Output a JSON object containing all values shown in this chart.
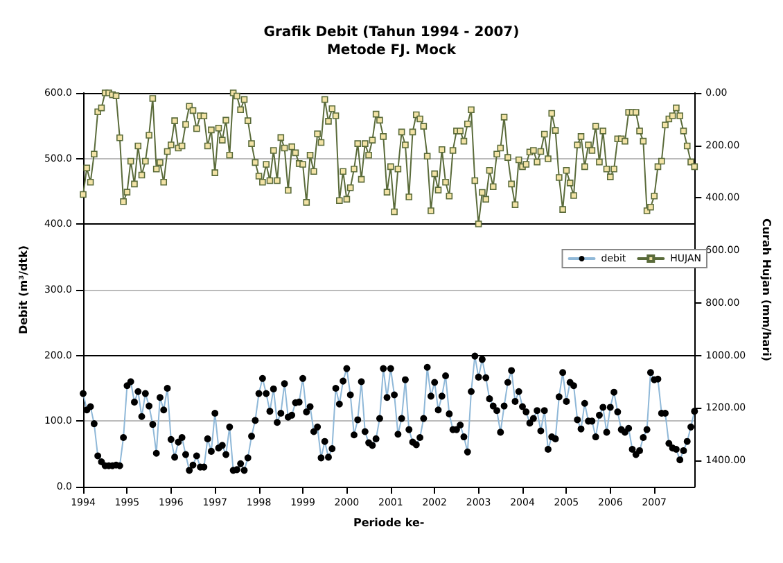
{
  "chart_data": {
    "type": "line",
    "title": "Grafik Debit (Tahun 1994 - 2007)\nMetode FJ. Mock",
    "xlabel": "Periode ke-",
    "ylabel": "Debit (m³/dtk)",
    "y2label": "Curah Hujan (mm/hari)",
    "categories": [
      "1994",
      null,
      null,
      null,
      null,
      null,
      null,
      null,
      null,
      null,
      null,
      null,
      "1995",
      null,
      null,
      null,
      null,
      null,
      null,
      null,
      null,
      null,
      null,
      null,
      "1996",
      null,
      null,
      null,
      null,
      null,
      null,
      null,
      null,
      null,
      null,
      null,
      "1997",
      null,
      null,
      null,
      null,
      null,
      null,
      null,
      null,
      null,
      null,
      null,
      "1998",
      null,
      null,
      null,
      null,
      null,
      null,
      null,
      null,
      null,
      null,
      null,
      "1999",
      null,
      null,
      null,
      null,
      null,
      null,
      null,
      null,
      null,
      null,
      null,
      "2000",
      null,
      null,
      null,
      null,
      null,
      null,
      null,
      null,
      null,
      null,
      null,
      "2001",
      null,
      null,
      null,
      null,
      null,
      null,
      null,
      null,
      null,
      null,
      null,
      "2002",
      null,
      null,
      null,
      null,
      null,
      null,
      null,
      null,
      null,
      null,
      null,
      "2003",
      null,
      null,
      null,
      null,
      null,
      null,
      null,
      null,
      null,
      null,
      null,
      "2004",
      null,
      null,
      null,
      null,
      null,
      null,
      null,
      null,
      null,
      null,
      null,
      "2005",
      null,
      null,
      null,
      null,
      null,
      null,
      null,
      null,
      null,
      null,
      null,
      "2006",
      null,
      null,
      null,
      null,
      null,
      null,
      null,
      null,
      null,
      null,
      null,
      "2007",
      null,
      null,
      null,
      null,
      null,
      null,
      null,
      null,
      null,
      null,
      null
    ],
    "series": [
      {
        "name": "debit",
        "color": "#8fb8d8",
        "marker": "circle",
        "values": [
          142,
          117,
          122,
          96,
          47,
          38,
          32,
          32,
          32,
          33,
          32,
          75,
          154,
          160,
          129,
          145,
          107,
          142,
          123,
          95,
          51,
          136,
          117,
          150,
          72,
          45,
          68,
          75,
          49,
          25,
          33,
          47,
          30,
          30,
          73,
          54,
          112,
          59,
          63,
          49,
          91,
          25,
          26,
          35,
          25,
          44,
          77,
          101,
          142,
          165,
          142,
          115,
          149,
          98,
          112,
          157,
          106,
          109,
          128,
          129,
          165,
          114,
          122,
          84,
          91,
          44,
          69,
          45,
          58,
          150,
          126,
          161,
          180,
          140,
          79,
          102,
          160,
          84,
          67,
          63,
          73,
          104,
          180,
          136,
          180,
          140,
          80,
          104,
          163,
          87,
          68,
          64,
          75,
          104,
          182,
          138,
          159,
          117,
          138,
          169,
          111,
          87,
          87,
          94,
          76,
          53,
          145,
          199,
          167,
          194,
          166,
          134,
          123,
          116,
          83,
          123,
          159,
          177,
          130,
          145,
          122,
          114,
          97,
          104,
          116,
          85,
          116,
          57,
          76,
          73,
          137,
          174,
          130,
          159,
          154,
          102,
          88,
          127,
          100,
          100,
          76,
          109,
          121,
          83,
          121,
          144,
          114,
          87,
          83,
          89,
          57,
          49,
          55,
          75,
          87,
          174,
          163,
          164,
          112,
          112,
          66,
          59,
          57,
          41,
          55,
          69,
          91,
          115
        ]
      },
      {
        "name": "HUJAN",
        "color": "#5a6b3a",
        "marker": "square",
        "axis": "y2",
        "values": [
          387,
          286,
          340,
          233,
          72,
          57,
          0,
          0,
          7,
          11,
          171,
          414,
          378,
          260,
          347,
          202,
          313,
          260,
          161,
          21,
          290,
          265,
          340,
          223,
          198,
          106,
          210,
          202,
          120,
          51,
          67,
          136,
          87,
          88,
          202,
          141,
          304,
          134,
          180,
          104,
          237,
          0,
          12,
          64,
          25,
          106,
          193,
          265,
          317,
          340,
          272,
          334,
          219,
          334,
          170,
          210,
          371,
          205,
          228,
          269,
          272,
          417,
          237,
          299,
          156,
          189,
          25,
          108,
          60,
          87,
          410,
          299,
          405,
          361,
          290,
          193,
          329,
          193,
          237,
          180,
          81,
          104,
          166,
          378,
          281,
          453,
          290,
          149,
          198,
          396,
          149,
          83,
          99,
          127,
          241,
          449,
          308,
          370,
          216,
          340,
          393,
          219,
          145,
          145,
          184,
          118,
          64,
          334,
          499,
          379,
          405,
          295,
          357,
          233,
          210,
          92,
          246,
          347,
          426,
          255,
          281,
          272,
          225,
          219,
          263,
          223,
          157,
          251,
          78,
          143,
          322,
          444,
          295,
          343,
          391,
          198,
          166,
          281,
          198,
          219,
          127,
          263,
          145,
          290,
          320,
          290,
          175,
          175,
          184,
          74,
          74,
          74,
          145,
          184,
          449,
          435,
          393,
          281,
          260,
          122,
          99,
          87,
          57,
          87,
          145,
          202,
          263,
          281
        ]
      }
    ],
    "ylim": [
      0,
      600
    ],
    "yticks": [
      {
        "value": 0,
        "label": "0.0"
      },
      {
        "value": 100,
        "label": "100.0"
      },
      {
        "value": 200,
        "label": "200.0"
      },
      {
        "value": 300,
        "label": "300.0"
      },
      {
        "value": 400,
        "label": "400.0"
      },
      {
        "value": 500,
        "label": "500.0"
      },
      {
        "value": 600,
        "label": "600.0"
      }
    ],
    "y2lim": [
      1500,
      0
    ],
    "y2ticks": [
      {
        "value": 0,
        "label": "0.00"
      },
      {
        "value": 200,
        "label": "200.00"
      },
      {
        "value": 400,
        "label": "400.00"
      },
      {
        "value": 600,
        "label": "600.00"
      },
      {
        "value": 800,
        "label": "800.00"
      },
      {
        "value": 1000,
        "label": "1000.00"
      },
      {
        "value": 1200,
        "label": "1200.00"
      },
      {
        "value": 1400,
        "label": "1400.00"
      }
    ],
    "grid": "y",
    "legend": "right",
    "line_style": "solid"
  }
}
